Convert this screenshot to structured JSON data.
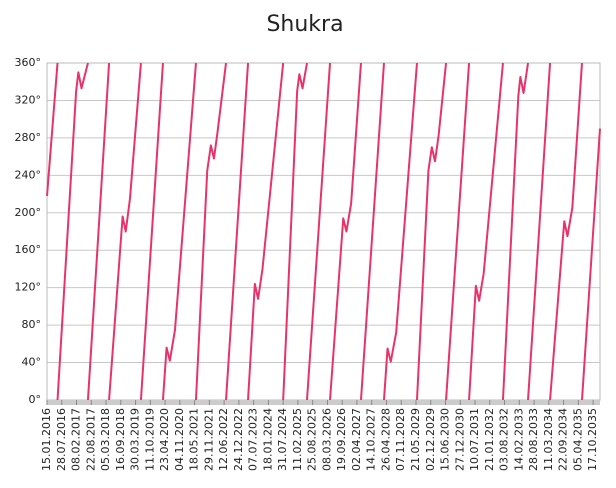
{
  "chart_data": {
    "type": "line",
    "title": "Shukra",
    "color": "#e8336a",
    "grid": true,
    "xlim": [
      "15.01.2016",
      "16.01.2036"
    ],
    "ylim": [
      0,
      360
    ],
    "yticks": [
      {
        "value": 0,
        "label": "0°"
      },
      {
        "value": 40,
        "label": "40°"
      },
      {
        "value": 80,
        "label": "80°"
      },
      {
        "value": 120,
        "label": "120°"
      },
      {
        "value": 160,
        "label": "160°"
      },
      {
        "value": 200,
        "label": "200°"
      },
      {
        "value": 240,
        "label": "240°"
      },
      {
        "value": 280,
        "label": "280°"
      },
      {
        "value": 320,
        "label": "320°"
      },
      {
        "value": 360,
        "label": "360°"
      }
    ],
    "xticks": [
      "15.01.2016",
      "28.07.2016",
      "08.02.2017",
      "22.08.2017",
      "05.03.2018",
      "16.09.2018",
      "30.03.2019",
      "11.10.2019",
      "23.04.2020",
      "04.11.2020",
      "18.05.2021",
      "29.11.2021",
      "12.06.2022",
      "24.12.2022",
      "07.07.2023",
      "18.01.2024",
      "31.07.2024",
      "11.02.2025",
      "25.08.2025",
      "08.03.2026",
      "19.09.2026",
      "02.04.2027",
      "14.10.2027",
      "26.04.2028",
      "07.11.2028",
      "21.05.2029",
      "02.12.2029",
      "15.06.2030",
      "27.12.2030",
      "10.07.2031",
      "21.01.2032",
      "03.08.2032",
      "14.02.2033",
      "28.08.2033",
      "11.03.2034",
      "22.09.2034",
      "05.04.2035",
      "17.10.2035"
    ],
    "x": [
      "15.01.2016",
      "02.06.2016",
      "02.06.2016",
      "02.06.2016",
      "03.02.2017",
      "04.03.2017",
      "15.04.2017",
      "09.07.2017",
      "09.07.2017",
      "09.07.2017",
      "14.04.2018",
      "14.04.2018",
      "14.04.2018",
      "10.10.2018",
      "20.11.2018",
      "15.01.2019",
      "09.06.2019",
      "09.06.2019",
      "09.06.2019",
      "26.03.2020",
      "26.03.2020",
      "26.03.2020",
      "13.05.2020",
      "25.06.2020",
      "01.09.2020",
      "05.06.2021",
      "05.06.2021",
      "05.06.2021",
      "01.11.2021",
      "19.12.2021",
      "29.01.2022",
      "15.03.2022",
      "07.07.2022",
      "07.07.2022",
      "07.07.2022",
      "24.04.2023",
      "24.04.2023",
      "24.04.2023",
      "23.07.2023",
      "04.09.2023",
      "01.11.2023",
      "31.07.2024",
      "31.07.2024",
      "31.07.2024",
      "01.02.2025",
      "02.03.2025",
      "13.04.2025",
      "11.06.2025",
      "11.06.2025",
      "11.06.2025",
      "11.04.2026",
      "11.04.2026",
      "11.04.2026",
      "03.10.2026",
      "14.11.2026",
      "15.01.2027",
      "25.05.2027",
      "25.05.2027",
      "25.05.2027",
      "24.03.2028",
      "24.03.2028",
      "24.03.2028",
      "10.05.2028",
      "22.06.2028",
      "01.09.2028",
      "03.06.2029",
      "03.06.2029",
      "03.06.2029",
      "01.11.2029",
      "16.12.2029",
      "27.01.2030",
      "15.03.2030",
      "22.06.2030",
      "22.06.2030",
      "22.06.2030",
      "22.04.2031",
      "22.04.2031",
      "22.04.2031",
      "21.07.2031",
      "02.09.2031",
      "01.11.2031",
      "13.07.2032",
      "13.07.2032",
      "13.07.2032",
      "01.02.2033",
      "28.02.2033",
      "11.04.2033",
      "09.06.2033",
      "09.06.2033",
      "09.06.2033",
      "27.03.2034",
      "27.03.2034",
      "27.03.2034",
      "01.10.2034",
      "12.11.2034",
      "15.01.2035",
      "23.05.2035",
      "23.05.2035",
      "23.05.2035",
      "16.01.2036"
    ],
    "values": [
      218,
      360,
      null,
      0,
      330,
      350,
      333,
      360,
      null,
      0,
      360,
      null,
      0,
      196,
      180,
      215,
      360,
      null,
      0,
      360,
      null,
      0,
      56,
      42,
      75,
      360,
      null,
      0,
      245,
      272,
      258,
      285,
      360,
      null,
      0,
      360,
      null,
      0,
      124,
      108,
      140,
      360,
      null,
      0,
      330,
      348,
      333,
      360,
      null,
      0,
      360,
      null,
      0,
      194,
      180,
      210,
      360,
      null,
      0,
      360,
      null,
      0,
      55,
      41,
      72,
      360,
      null,
      0,
      245,
      270,
      255,
      282,
      360,
      null,
      0,
      360,
      null,
      0,
      122,
      106,
      135,
      360,
      null,
      0,
      325,
      345,
      328,
      360,
      null,
      0,
      360,
      null,
      0,
      191,
      175,
      205,
      360,
      null,
      0,
      290
    ]
  }
}
